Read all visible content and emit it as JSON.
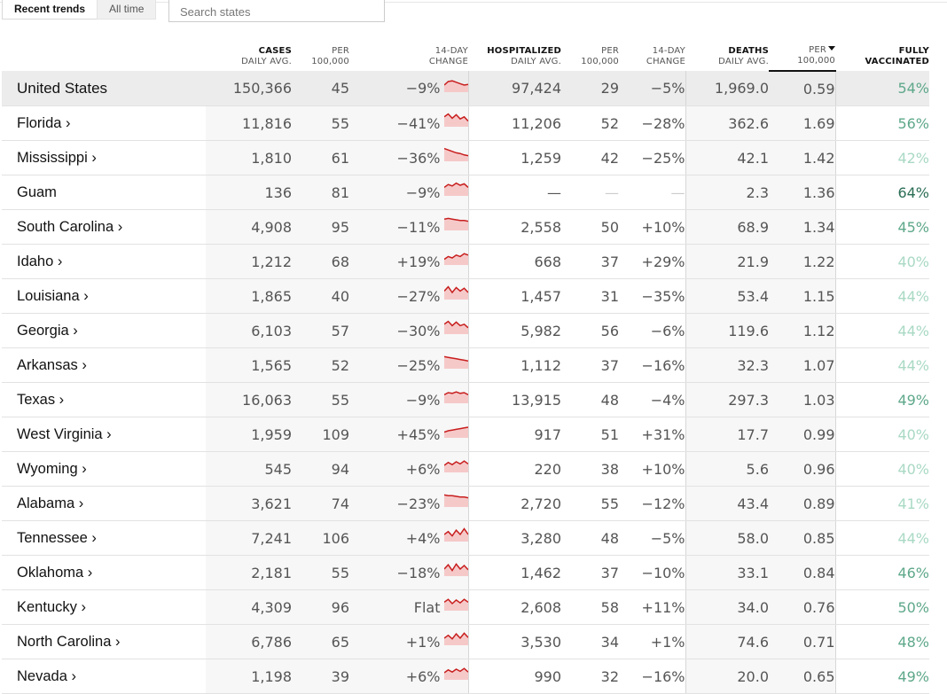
{
  "tabs": {
    "recent": "Recent trends",
    "alltime": "All time"
  },
  "search": {
    "placeholder": "Search states"
  },
  "columns": {
    "cases": "CASES",
    "cases_sub": "DAILY AVG.",
    "per1": "PER",
    "per1_sub": "100,000",
    "chg1": "14-DAY",
    "chg1_sub": "CHANGE",
    "hosp": "HOSPITALIZED",
    "hosp_sub": "DAILY AVG.",
    "per2": "PER",
    "per2_sub": "100,000",
    "chg2": "14-DAY",
    "chg2_sub": "CHANGE",
    "deaths": "DEATHS",
    "deaths_sub": "DAILY AVG.",
    "per3": "PER",
    "per3_sub": "100,000",
    "vax": "FULLY",
    "vax_sub": "VACCINATED"
  },
  "colors": {
    "spark_fill": "#f6c9c9",
    "spark_line": "#c81e1e",
    "vax_dark": "#2b6e55",
    "vax_light": "#a9d9c4"
  },
  "rows": [
    {
      "state": "United States",
      "cases": "150,366",
      "cases_per": "45",
      "cases_chg": "−9%",
      "trend": [
        0.5,
        0.75,
        0.8,
        0.7,
        0.6,
        0.5,
        0.55
      ],
      "hosp": "97,424",
      "hosp_per": "29",
      "hosp_chg": "−5%",
      "deaths": "1,969.0",
      "deaths_per": "0.59",
      "vax": "54%",
      "vax_pct": 54
    },
    {
      "state": "Florida ›",
      "cases": "11,816",
      "cases_per": "55",
      "cases_chg": "−41%",
      "trend": [
        0.7,
        0.9,
        0.6,
        0.85,
        0.55,
        0.7,
        0.4
      ],
      "hosp": "11,206",
      "hosp_per": "52",
      "hosp_chg": "−28%",
      "deaths": "362.6",
      "deaths_per": "1.69",
      "vax": "56%",
      "vax_pct": 56
    },
    {
      "state": "Mississippi ›",
      "cases": "1,810",
      "cases_per": "61",
      "cases_chg": "−36%",
      "trend": [
        0.9,
        0.8,
        0.7,
        0.6,
        0.55,
        0.45,
        0.4
      ],
      "hosp": "1,259",
      "hosp_per": "42",
      "hosp_chg": "−25%",
      "deaths": "42.1",
      "deaths_per": "1.42",
      "vax": "42%",
      "vax_pct": 42
    },
    {
      "state": "Guam",
      "cases": "136",
      "cases_per": "81",
      "cases_chg": "−9%",
      "trend": [
        0.6,
        0.8,
        0.7,
        0.9,
        0.75,
        0.85,
        0.6
      ],
      "hosp": "—",
      "hosp_per": "—",
      "hosp_chg": "—",
      "deaths": "2.3",
      "deaths_per": "1.36",
      "vax": "64%",
      "vax_pct": 64
    },
    {
      "state": "South Carolina ›",
      "cases": "4,908",
      "cases_per": "95",
      "cases_chg": "−11%",
      "trend": [
        0.8,
        0.85,
        0.8,
        0.75,
        0.7,
        0.7,
        0.65
      ],
      "hosp": "2,558",
      "hosp_per": "50",
      "hosp_chg": "+10%",
      "deaths": "68.9",
      "deaths_per": "1.34",
      "vax": "45%",
      "vax_pct": 45
    },
    {
      "state": "Idaho ›",
      "cases": "1,212",
      "cases_per": "68",
      "cases_chg": "+19%",
      "trend": [
        0.4,
        0.6,
        0.5,
        0.7,
        0.6,
        0.8,
        0.7
      ],
      "hosp": "668",
      "hosp_per": "37",
      "hosp_chg": "+29%",
      "deaths": "21.9",
      "deaths_per": "1.22",
      "vax": "40%",
      "vax_pct": 40
    },
    {
      "state": "Louisiana ›",
      "cases": "1,865",
      "cases_per": "40",
      "cases_chg": "−27%",
      "trend": [
        0.6,
        0.9,
        0.5,
        0.85,
        0.6,
        0.8,
        0.5
      ],
      "hosp": "1,457",
      "hosp_per": "31",
      "hosp_chg": "−35%",
      "deaths": "53.4",
      "deaths_per": "1.15",
      "vax": "44%",
      "vax_pct": 44
    },
    {
      "state": "Georgia ›",
      "cases": "6,103",
      "cases_per": "57",
      "cases_chg": "−30%",
      "trend": [
        0.7,
        0.9,
        0.6,
        0.85,
        0.6,
        0.7,
        0.45
      ],
      "hosp": "5,982",
      "hosp_per": "56",
      "hosp_chg": "−6%",
      "deaths": "119.6",
      "deaths_per": "1.12",
      "vax": "44%",
      "vax_pct": 44
    },
    {
      "state": "Arkansas ›",
      "cases": "1,565",
      "cases_per": "52",
      "cases_chg": "−25%",
      "trend": [
        0.85,
        0.8,
        0.75,
        0.7,
        0.65,
        0.6,
        0.55
      ],
      "hosp": "1,112",
      "hosp_per": "37",
      "hosp_chg": "−16%",
      "deaths": "32.3",
      "deaths_per": "1.07",
      "vax": "44%",
      "vax_pct": 44
    },
    {
      "state": "Texas ›",
      "cases": "16,063",
      "cases_per": "55",
      "cases_chg": "−9%",
      "trend": [
        0.6,
        0.75,
        0.7,
        0.8,
        0.7,
        0.75,
        0.6
      ],
      "hosp": "13,915",
      "hosp_per": "48",
      "hosp_chg": "−4%",
      "deaths": "297.3",
      "deaths_per": "1.03",
      "vax": "49%",
      "vax_pct": 49
    },
    {
      "state": "West Virginia ›",
      "cases": "1,959",
      "cases_per": "109",
      "cases_chg": "+45%",
      "trend": [
        0.4,
        0.5,
        0.55,
        0.6,
        0.65,
        0.7,
        0.75
      ],
      "hosp": "917",
      "hosp_per": "51",
      "hosp_chg": "+31%",
      "deaths": "17.7",
      "deaths_per": "0.99",
      "vax": "40%",
      "vax_pct": 40
    },
    {
      "state": "Wyoming ›",
      "cases": "545",
      "cases_per": "94",
      "cases_chg": "+6%",
      "trend": [
        0.5,
        0.7,
        0.55,
        0.75,
        0.6,
        0.8,
        0.6
      ],
      "hosp": "220",
      "hosp_per": "38",
      "hosp_chg": "+10%",
      "deaths": "5.6",
      "deaths_per": "0.96",
      "vax": "40%",
      "vax_pct": 40
    },
    {
      "state": "Alabama ›",
      "cases": "3,621",
      "cases_per": "74",
      "cases_chg": "−23%",
      "trend": [
        0.85,
        0.8,
        0.8,
        0.75,
        0.7,
        0.7,
        0.65
      ],
      "hosp": "2,720",
      "hosp_per": "55",
      "hosp_chg": "−12%",
      "deaths": "43.4",
      "deaths_per": "0.89",
      "vax": "41%",
      "vax_pct": 41
    },
    {
      "state": "Tennessee ›",
      "cases": "7,241",
      "cases_per": "106",
      "cases_chg": "+4%",
      "trend": [
        0.5,
        0.7,
        0.4,
        0.8,
        0.5,
        0.9,
        0.5
      ],
      "hosp": "3,280",
      "hosp_per": "48",
      "hosp_chg": "−5%",
      "deaths": "58.0",
      "deaths_per": "0.85",
      "vax": "44%",
      "vax_pct": 44
    },
    {
      "state": "Oklahoma ›",
      "cases": "2,181",
      "cases_per": "55",
      "cases_chg": "−18%",
      "trend": [
        0.5,
        0.8,
        0.4,
        0.85,
        0.5,
        0.75,
        0.45
      ],
      "hosp": "1,462",
      "hosp_per": "37",
      "hosp_chg": "−10%",
      "deaths": "33.1",
      "deaths_per": "0.84",
      "vax": "46%",
      "vax_pct": 46
    },
    {
      "state": "Kentucky ›",
      "cases": "4,309",
      "cases_per": "96",
      "cases_chg": "Flat",
      "trend": [
        0.6,
        0.8,
        0.5,
        0.75,
        0.55,
        0.8,
        0.6
      ],
      "hosp": "2,608",
      "hosp_per": "58",
      "hosp_chg": "+11%",
      "deaths": "34.0",
      "deaths_per": "0.76",
      "vax": "50%",
      "vax_pct": 50
    },
    {
      "state": "North Carolina ›",
      "cases": "6,786",
      "cases_per": "65",
      "cases_chg": "+1%",
      "trend": [
        0.5,
        0.7,
        0.45,
        0.8,
        0.5,
        0.85,
        0.55
      ],
      "hosp": "3,530",
      "hosp_per": "34",
      "hosp_chg": "+1%",
      "deaths": "74.6",
      "deaths_per": "0.71",
      "vax": "48%",
      "vax_pct": 48
    },
    {
      "state": "Nevada ›",
      "cases": "1,198",
      "cases_per": "39",
      "cases_chg": "+6%",
      "trend": [
        0.5,
        0.7,
        0.55,
        0.75,
        0.6,
        0.8,
        0.55
      ],
      "hosp": "990",
      "hosp_per": "32",
      "hosp_chg": "−16%",
      "deaths": "20.0",
      "deaths_per": "0.65",
      "vax": "49%",
      "vax_pct": 49
    }
  ]
}
